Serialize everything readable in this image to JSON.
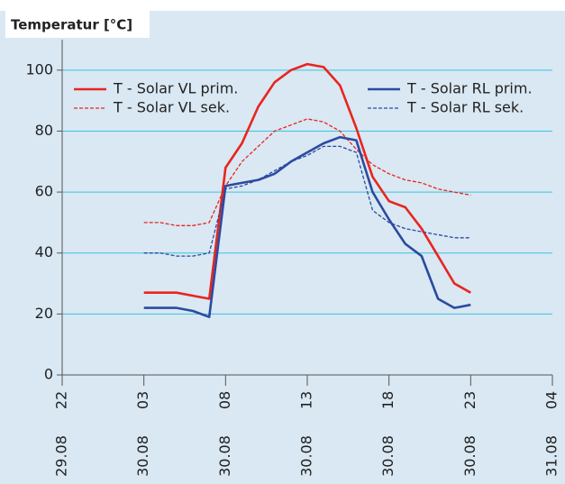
{
  "chart_data": {
    "type": "line",
    "title": "Temperatur [°C]",
    "x": [
      "30.08 03",
      "30.08 04",
      "30.08 05",
      "30.08 06",
      "30.08 07",
      "30.08 08",
      "30.08 09",
      "30.08 10",
      "30.08 11",
      "30.08 12",
      "30.08 13",
      "30.08 14",
      "30.08 15",
      "30.08 16",
      "30.08 17",
      "30.08 18",
      "30.08 19",
      "30.08 20",
      "30.08 21",
      "30.08 22",
      "30.08 23"
    ],
    "series": [
      {
        "name": "T - Solar VL prim.",
        "color": "#e8251e",
        "dash": false,
        "values": [
          27,
          27,
          27,
          26,
          25,
          68,
          76,
          88,
          96,
          100,
          102,
          101,
          95,
          81,
          65,
          57,
          55,
          48,
          39,
          30,
          27
        ]
      },
      {
        "name": "T - Solar VL sek.",
        "color": "#e8251e",
        "dash": true,
        "values": [
          50,
          50,
          49,
          49,
          50,
          62,
          70,
          75,
          80,
          82,
          84,
          83,
          80,
          74,
          69,
          66,
          64,
          63,
          61,
          60,
          59
        ]
      },
      {
        "name": "T - Solar RL prim.",
        "color": "#2c4aa0",
        "dash": false,
        "values": [
          22,
          22,
          22,
          21,
          19,
          62,
          63,
          64,
          66,
          70,
          73,
          76,
          78,
          77,
          60,
          51,
          43,
          39,
          25,
          22,
          23
        ]
      },
      {
        "name": "T - Solar RL sek.",
        "color": "#2c4aa0",
        "dash": true,
        "values": [
          40,
          40,
          39,
          39,
          40,
          61,
          62,
          64,
          67,
          70,
          72,
          75,
          75,
          73,
          54,
          50,
          48,
          47,
          46,
          45,
          45
        ]
      }
    ],
    "xlim": [
      "29.08 22",
      "31.08 04"
    ],
    "xticks": [
      {
        "value": "29.08 22",
        "label": [
          "22",
          "29.08"
        ]
      },
      {
        "value": "30.08 03",
        "label": [
          "03",
          "30.08"
        ]
      },
      {
        "value": "30.08 08",
        "label": [
          "08",
          "30.08"
        ]
      },
      {
        "value": "30.08 13",
        "label": [
          "13",
          "30.08"
        ]
      },
      {
        "value": "30.08 18",
        "label": [
          "18",
          "30.08"
        ]
      },
      {
        "value": "30.08 23",
        "label": [
          "23",
          "30.08"
        ]
      },
      {
        "value": "31.08 04",
        "label": [
          "04",
          "31.08"
        ]
      }
    ],
    "ylim": [
      0,
      110
    ],
    "yticks": [
      0,
      20,
      40,
      60,
      80,
      100
    ],
    "grid": true
  }
}
